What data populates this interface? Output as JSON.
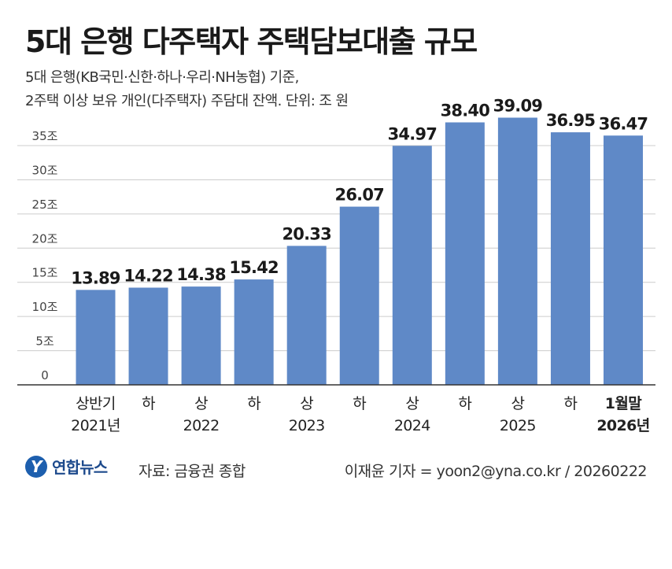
{
  "header": {
    "title": "5대 은행 다주택자 주택담보대출 규모",
    "subtitle_line1": "5대 은행(KB국민·신한·하나·우리·NH농협) 기준,",
    "subtitle_line2": "2주택 이상 보유 개인(다주택자) 주담대 잔액. 단위: 조 원"
  },
  "footer": {
    "logo": "연합뉴스",
    "source": "자료: 금융권 종합",
    "credit": "이재윤 기자 = yoon2@yna.co.kr / 20260222"
  },
  "colors": {
    "bar": "#5f89c7",
    "axis": "#333333",
    "grid": "#cccccc"
  },
  "chart_data": {
    "type": "bar",
    "categories": [
      [
        "상반기",
        "2021년"
      ],
      [
        "하"
      ],
      [
        "상",
        "2022"
      ],
      [
        "하"
      ],
      [
        "상",
        "2023"
      ],
      [
        "하"
      ],
      [
        "상",
        "2024"
      ],
      [
        "하"
      ],
      [
        "상",
        "2025"
      ],
      [
        "하"
      ],
      [
        "1월말",
        "2026년"
      ]
    ],
    "values": [
      13.89,
      14.22,
      14.38,
      15.42,
      20.33,
      26.07,
      34.97,
      38.4,
      39.09,
      36.95,
      36.47
    ],
    "value_labels": [
      "13.89",
      "14.22",
      "14.38",
      "15.42",
      "20.33",
      "26.07",
      "34.97",
      "38.40",
      "39.09",
      "36.95",
      "36.47"
    ],
    "y_ticks": [
      0,
      5,
      10,
      15,
      20,
      25,
      30,
      35
    ],
    "y_tick_labels": [
      "0",
      "5조",
      "10조",
      "15조",
      "20조",
      "25조",
      "30조",
      "35조"
    ],
    "ylim": [
      0,
      41
    ],
    "grid": true,
    "legend": "none",
    "highlight_last": true
  }
}
